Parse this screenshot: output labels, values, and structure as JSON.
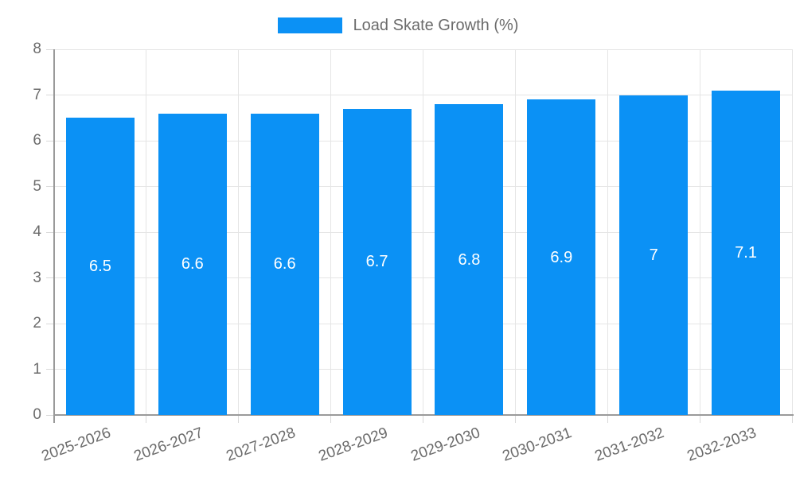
{
  "chart_data": {
    "type": "bar",
    "legend": {
      "label": "Load Skate Growth (%)",
      "position": "top"
    },
    "categories": [
      "2025-2026",
      "2026-2027",
      "2027-2028",
      "2028-2029",
      "2029-2030",
      "2030-2031",
      "2031-2032",
      "2032-2033"
    ],
    "values": [
      6.5,
      6.6,
      6.6,
      6.7,
      6.8,
      6.9,
      7,
      7.1
    ],
    "value_labels": [
      "6.5",
      "6.6",
      "6.6",
      "6.7",
      "6.8",
      "6.9",
      "7",
      "7.1"
    ],
    "xlabel": "",
    "ylabel": "",
    "ylim": [
      0,
      8
    ],
    "yticks": [
      "0",
      "1",
      "2",
      "3",
      "4",
      "5",
      "6",
      "7",
      "8"
    ],
    "grid": true,
    "x_label_rotation_deg": -20,
    "colors": {
      "bar": "#0b91f5",
      "value_label": "#ffffff",
      "axis_text": "#6b6b6b",
      "grid_line": "#e5e5e5",
      "tick_line": "#d9d9d9",
      "axis_line": "#9a9a9a",
      "background": "#ffffff"
    }
  }
}
